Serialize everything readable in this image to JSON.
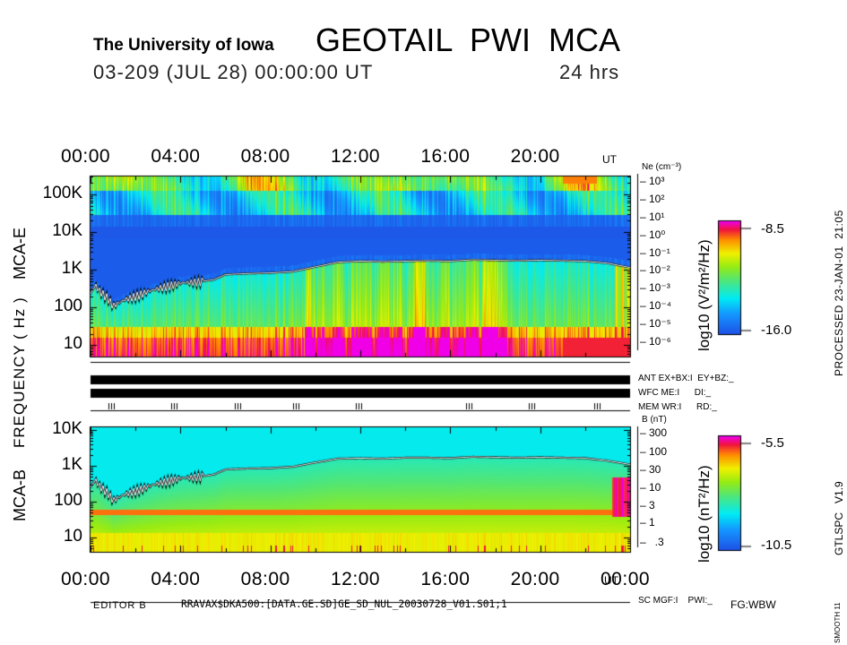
{
  "header": {
    "institution": "The University of Iowa",
    "instrument": "GEOTAIL  PWI  MCA",
    "date_line": "03-209 (JUL 28) 00:00:00 UT",
    "duration": "24 hrs"
  },
  "processed": "PROCESSED 23-JAN-01  21:05",
  "version": "GTLSPC   V1.9",
  "smooth": "SMOOTH 11",
  "footer": {
    "editor": "EDITOR B",
    "file": "RRAVAX$DKA500:[DATA.GE.SD]GE_SD_NUL_20030728_V01.S01;1",
    "fg": "FG:WBW"
  },
  "status": {
    "ant": "ANT EX+BX:I  EY+BZ:_",
    "wfc": "WFC ME:I      DI:_",
    "mem": "MEM WR:I      RD:_",
    "sc": "SC MGF:I    PWI:_"
  },
  "chart_data": [
    {
      "type": "heatmap",
      "name": "MCA-E",
      "title": "GEOTAIL PWI MCA",
      "ylabel": "MCA-E",
      "shared_ylabel": "FREQUENCY ( Hz )",
      "x_ticks": [
        "00:00",
        "04:00",
        "08:00",
        "12:00",
        "16:00",
        "20:00"
      ],
      "x_unit": "UT",
      "x_range_hours": [
        0,
        24
      ],
      "y_ticks": [
        "100K",
        "10K",
        "1K",
        "100",
        "10"
      ],
      "y_range_hz": [
        5,
        300000
      ],
      "right_axis_title": "Ne (cm⁻³)",
      "right_axis_ticks": [
        "10³",
        "10²",
        "10¹",
        "10⁰",
        "10⁻¹",
        "10⁻²",
        "10⁻³",
        "10⁻⁴",
        "10⁻⁵",
        "10⁻⁶"
      ],
      "colorbar": {
        "label": "log10 (V²/m²/Hz)",
        "max": "-8.5",
        "min": "-16.0"
      },
      "trace": {
        "x_hours": [
          0,
          0.2,
          0.4,
          0.8,
          1.0,
          1.5,
          2,
          2.5,
          3,
          3.5,
          4,
          4.5,
          5,
          5.5,
          6,
          7,
          8,
          9,
          10,
          11,
          12,
          13,
          14,
          15,
          16,
          17,
          18,
          19,
          20,
          21,
          22,
          23,
          24
        ],
        "freq_hz": [
          230,
          400,
          280,
          170,
          110,
          160,
          200,
          260,
          320,
          380,
          450,
          470,
          500,
          550,
          750,
          800,
          830,
          900,
          1200,
          1600,
          1700,
          1650,
          1700,
          1750,
          1700,
          1850,
          1800,
          1750,
          1800,
          1750,
          1700,
          1500,
          1150
        ]
      }
    },
    {
      "type": "heatmap",
      "name": "MCA-B",
      "ylabel": "MCA-B",
      "x_ticks": [
        "00:00",
        "04:00",
        "08:00",
        "12:00",
        "16:00",
        "20:00",
        "00:00"
      ],
      "x_unit": "UT",
      "x_range_hours": [
        0,
        24
      ],
      "y_ticks": [
        "10K",
        "1K",
        "100",
        "10"
      ],
      "y_range_hz": [
        4,
        12000
      ],
      "right_axis_title": "B (nT)",
      "right_axis_ticks": [
        "300",
        "100",
        "30",
        "10",
        "3",
        "1",
        ".3"
      ],
      "colorbar": {
        "label": "log10 (nT²/Hz)",
        "max": "-5.5",
        "min": "-10.5"
      },
      "trace": {
        "x_hours": [
          0,
          0.2,
          0.4,
          0.8,
          1.0,
          1.5,
          2,
          2.5,
          3,
          3.5,
          4,
          4.5,
          5,
          5.5,
          6,
          7,
          8,
          9,
          10,
          11,
          12,
          13,
          14,
          15,
          16,
          17,
          18,
          19,
          20,
          21,
          22,
          23,
          24
        ],
        "freq_hz": [
          250,
          420,
          280,
          170,
          110,
          160,
          200,
          260,
          330,
          390,
          460,
          480,
          520,
          580,
          800,
          850,
          870,
          950,
          1250,
          1600,
          1650,
          1600,
          1700,
          1700,
          1650,
          1800,
          1750,
          1700,
          1750,
          1700,
          1650,
          1400,
          1100
        ]
      }
    }
  ],
  "mem_marks_hours": [
    0.8,
    3.6,
    6.4,
    9.0,
    11.8,
    16.7,
    19.5,
    22.4
  ]
}
